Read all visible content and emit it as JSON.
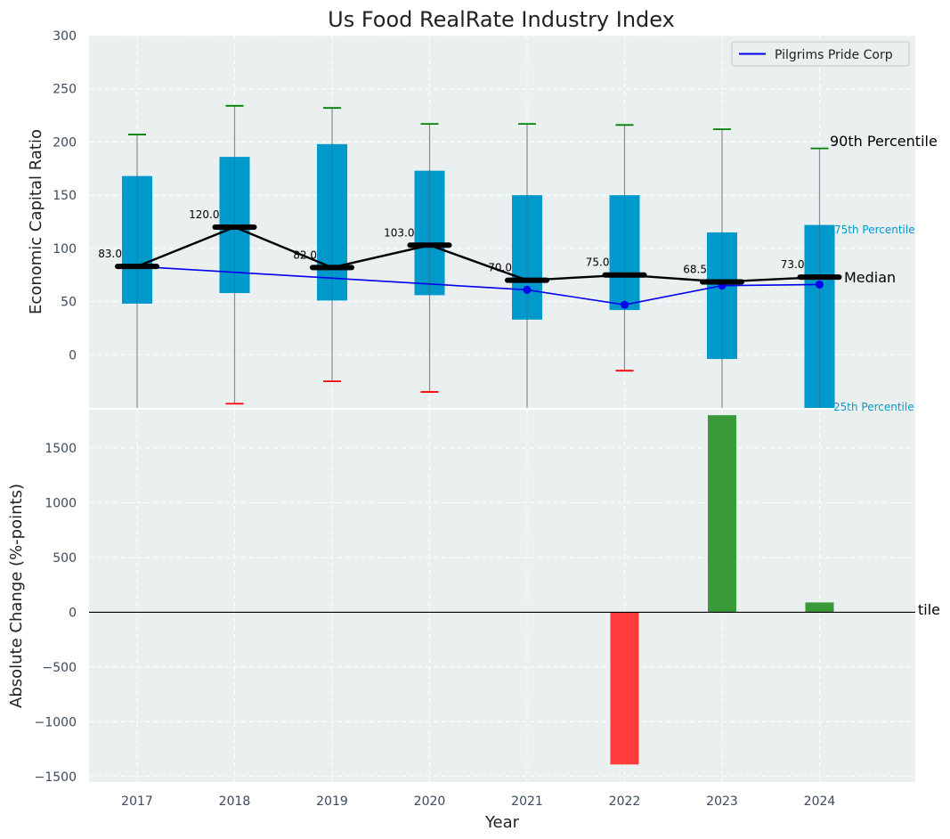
{
  "colors": {
    "panel_bg": "#eaeff0",
    "box": "#0099cc",
    "whisker": "#8c8c8c",
    "cap_high": "#008000",
    "cap_low": "#ff0000",
    "median": "#000000",
    "company": "#0000ee",
    "bar_positive": "#3a9a3a",
    "bar_negative": "#ff3b3b",
    "pct_label": "#0099cc"
  },
  "chart_data": [
    {
      "type": "box",
      "title": "Us Food RealRate Industry Index",
      "ylabel": "Economic Capital Ratio",
      "ylim": [
        -50,
        300
      ],
      "yticks": [
        0,
        50,
        100,
        150,
        200,
        250,
        300
      ],
      "categories": [
        "2017",
        "2018",
        "2019",
        "2020",
        "2021",
        "2022",
        "2023",
        "2024"
      ],
      "p25": [
        48,
        58,
        51,
        56,
        33,
        42,
        -4,
        -50
      ],
      "p75": [
        168,
        186,
        198,
        173,
        150,
        150,
        115,
        122
      ],
      "p90": [
        207,
        234,
        232,
        217,
        217,
        216,
        212,
        194
      ],
      "p10": [
        null,
        -46,
        -25,
        -35,
        null,
        -15,
        null,
        null
      ],
      "median": [
        83,
        120,
        82,
        103,
        70,
        75,
        68.5,
        73
      ],
      "median_labels": [
        "83.0",
        "120.0",
        "82.0",
        "103.0",
        "70.0",
        "75.0",
        "68.5",
        "73.0"
      ],
      "series": [
        {
          "name": "Pilgrims Pride Corp",
          "values": [
            83,
            null,
            null,
            null,
            61,
            47,
            65,
            66
          ]
        }
      ],
      "legend": {
        "position": "top-right"
      },
      "annotations": {
        "p90": "90th Percentile",
        "p75": "75th Percentile",
        "median": "Median",
        "p25": "25th Percentile"
      },
      "grid": true
    },
    {
      "type": "bar",
      "ylabel": "Absolute Change (%-points)",
      "xlabel": "Year",
      "ylim": [
        -1550,
        1850
      ],
      "yticks": [
        -1500,
        -1000,
        -500,
        0,
        500,
        1000,
        1500
      ],
      "categories": [
        "2017",
        "2018",
        "2019",
        "2020",
        "2021",
        "2022",
        "2023",
        "2024"
      ],
      "values": [
        0,
        0,
        0,
        0,
        0,
        -1390,
        1800,
        90
      ],
      "overflow_label": "tile",
      "grid": true
    }
  ]
}
